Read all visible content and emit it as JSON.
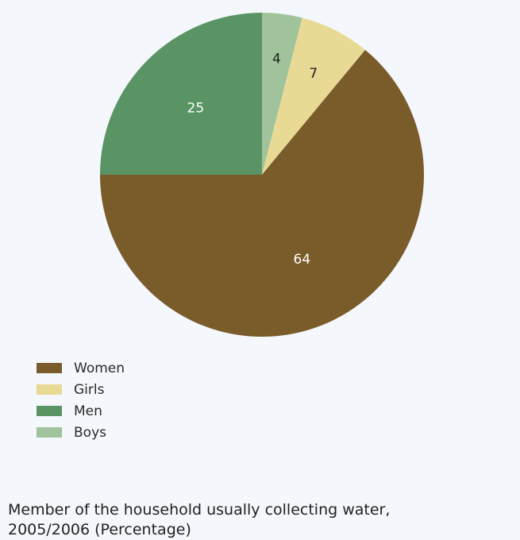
{
  "chart_data": {
    "type": "pie",
    "title": "",
    "categories": [
      "Women",
      "Girls",
      "Men",
      "Boys"
    ],
    "values": [
      64,
      7,
      25,
      4
    ],
    "colors": [
      "#7a5b2a",
      "#e8d995",
      "#5a9464",
      "#a0c39b"
    ],
    "data_labels": [
      "64",
      "7",
      "25",
      "4"
    ],
    "label_colors": [
      "#ffffff",
      "#222222",
      "#ffffff",
      "#222222"
    ],
    "start": "12 o'clock",
    "direction": "counterclockwise from Boys; Boys, Girls, Women clockwise, then Men",
    "legend_position": "bottom-left",
    "legend": [
      {
        "label": "Women",
        "color": "#7a5b2a"
      },
      {
        "label": "Girls",
        "color": "#e8d995"
      },
      {
        "label": "Men",
        "color": "#5a9464"
      },
      {
        "label": "Boys",
        "color": "#a0c39b"
      }
    ]
  },
  "caption": {
    "line1": "Member of the household usually collecting water,",
    "line2": "2005/2006 (Percentage)"
  }
}
